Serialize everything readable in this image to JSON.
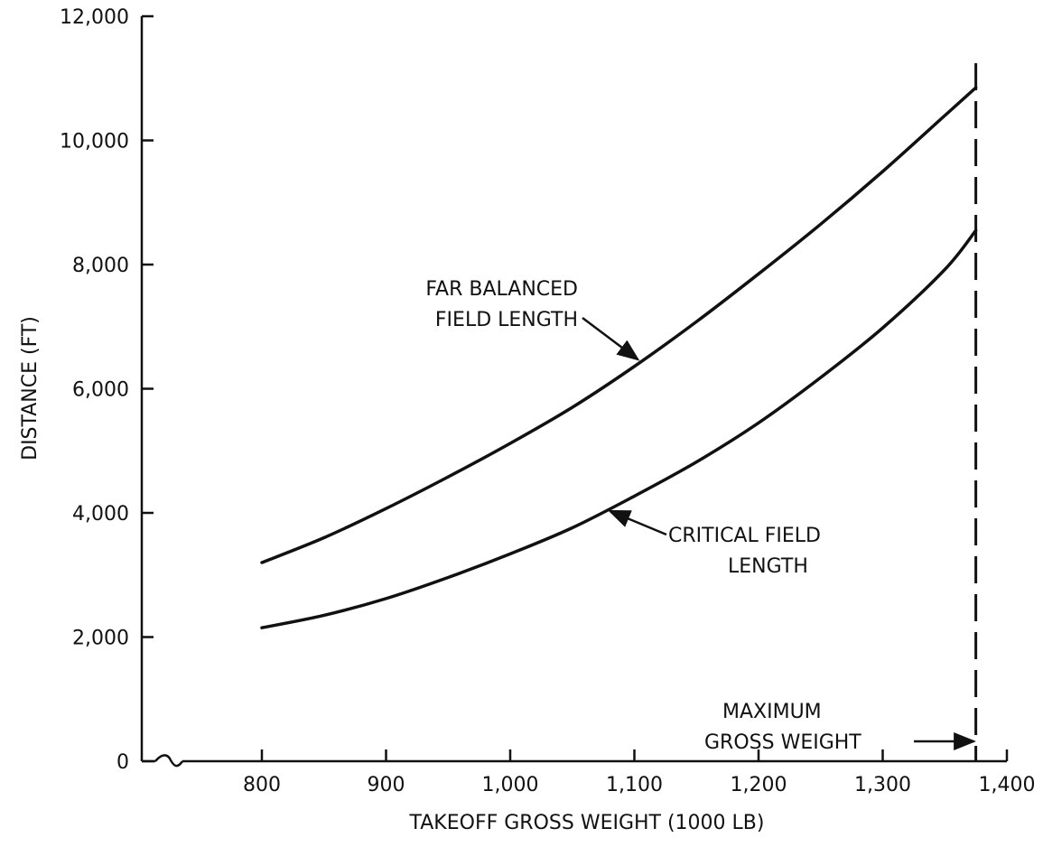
{
  "chart_data": {
    "type": "line",
    "xlabel": "TAKEOFF GROSS WEIGHT (1000 LB)",
    "ylabel": "DISTANCE (FT)",
    "xlim": [
      700,
      1400
    ],
    "ylim": [
      0,
      12000
    ],
    "x_axis_break": true,
    "grid": false,
    "x_ticks": [
      800,
      900,
      1000,
      1100,
      1200,
      1300,
      1400
    ],
    "x_tick_labels": [
      "800",
      "900",
      "1,000",
      "1,100",
      "1,200",
      "1,300",
      "1,400"
    ],
    "y_ticks": [
      0,
      2000,
      4000,
      6000,
      8000,
      10000,
      12000
    ],
    "y_tick_labels": [
      "0",
      "2,000",
      "4,000",
      "6,000",
      "8,000",
      "10,000",
      "12,000"
    ],
    "series": [
      {
        "name": "FAR BALANCED FIELD LENGTH",
        "x": [
          800,
          850,
          900,
          950,
          1000,
          1050,
          1100,
          1150,
          1200,
          1250,
          1300,
          1350,
          1375
        ],
        "y": [
          3200,
          3600,
          4070,
          4580,
          5120,
          5700,
          6360,
          7080,
          7850,
          8650,
          9500,
          10400,
          10850
        ]
      },
      {
        "name": "CRITICAL FIELD LENGTH",
        "x": [
          800,
          850,
          900,
          950,
          1000,
          1050,
          1100,
          1150,
          1200,
          1250,
          1300,
          1350,
          1375
        ],
        "y": [
          2150,
          2350,
          2620,
          2960,
          3340,
          3760,
          4270,
          4820,
          5450,
          6180,
          6980,
          7920,
          8550
        ]
      }
    ],
    "reference_line": {
      "x": 1375,
      "style": "dashed",
      "label": [
        "MAXIMUM",
        "GROSS WEIGHT"
      ]
    },
    "annotations": [
      {
        "lines": [
          "FAR BALANCED",
          "FIELD LENGTH"
        ],
        "series": "FAR BALANCED FIELD LENGTH",
        "point": [
          1105,
          6500
        ]
      },
      {
        "lines": [
          "CRITICAL FIELD",
          "LENGTH"
        ],
        "series": "CRITICAL FIELD LENGTH",
        "point": [
          1078,
          4060
        ]
      }
    ]
  }
}
